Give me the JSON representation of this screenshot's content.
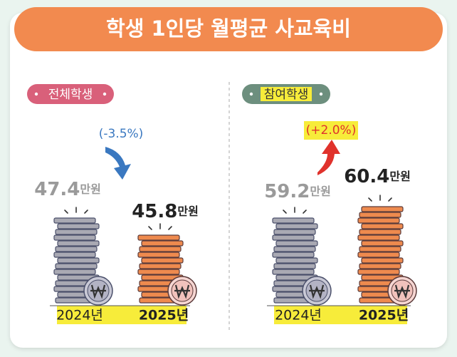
{
  "title": "학생 1인당 월평균 사교육비",
  "panels": [
    {
      "label": "전체학생",
      "change": "(-3.5%)",
      "items": [
        {
          "year": "2024년",
          "value": "47.4",
          "unit": "만원"
        },
        {
          "year": "2025년",
          "value": "45.8",
          "unit": "만원"
        }
      ]
    },
    {
      "label": "참여학생",
      "change": "(+2.0%)",
      "items": [
        {
          "year": "2024년",
          "value": "59.2",
          "unit": "만원"
        },
        {
          "year": "2025년",
          "value": "60.4",
          "unit": "만원"
        }
      ]
    }
  ]
}
